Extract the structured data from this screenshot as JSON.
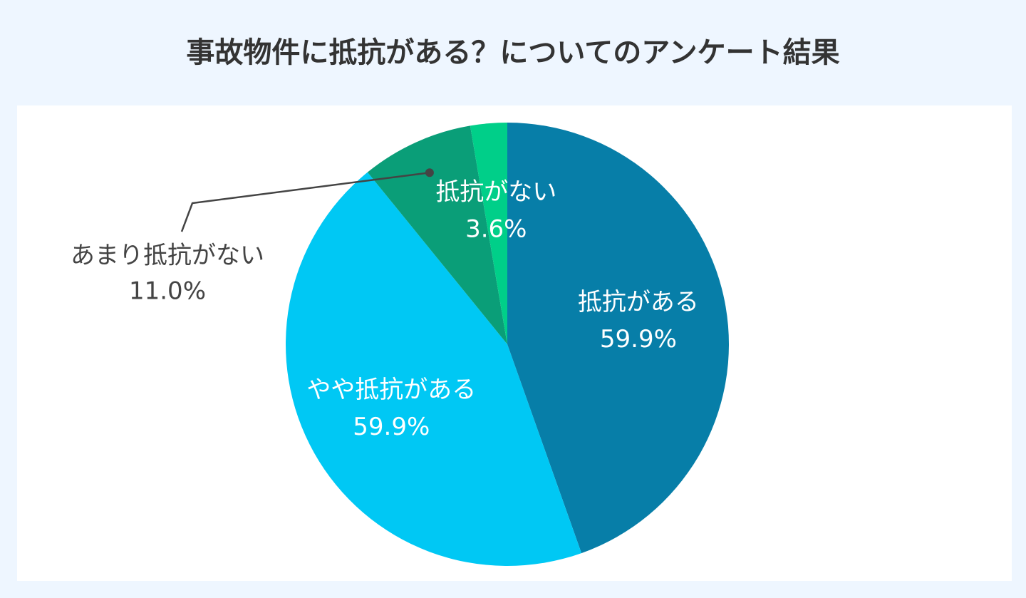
{
  "chart_data": {
    "type": "pie",
    "title": "事故物件に抵抗がある？についてのアンケート結果",
    "categories": [
      "抵抗がある",
      "やや抵抗がある",
      "あまり抵抗がない",
      "抵抗がない"
    ],
    "values": [
      59.9,
      59.9,
      11.0,
      3.6
    ],
    "value_labels": [
      "59.9%",
      "59.9%",
      "11.0%",
      "3.6%"
    ],
    "colors": [
      "#077ea8",
      "#00c8f4",
      "#0a9e78",
      "#00cf89"
    ]
  }
}
